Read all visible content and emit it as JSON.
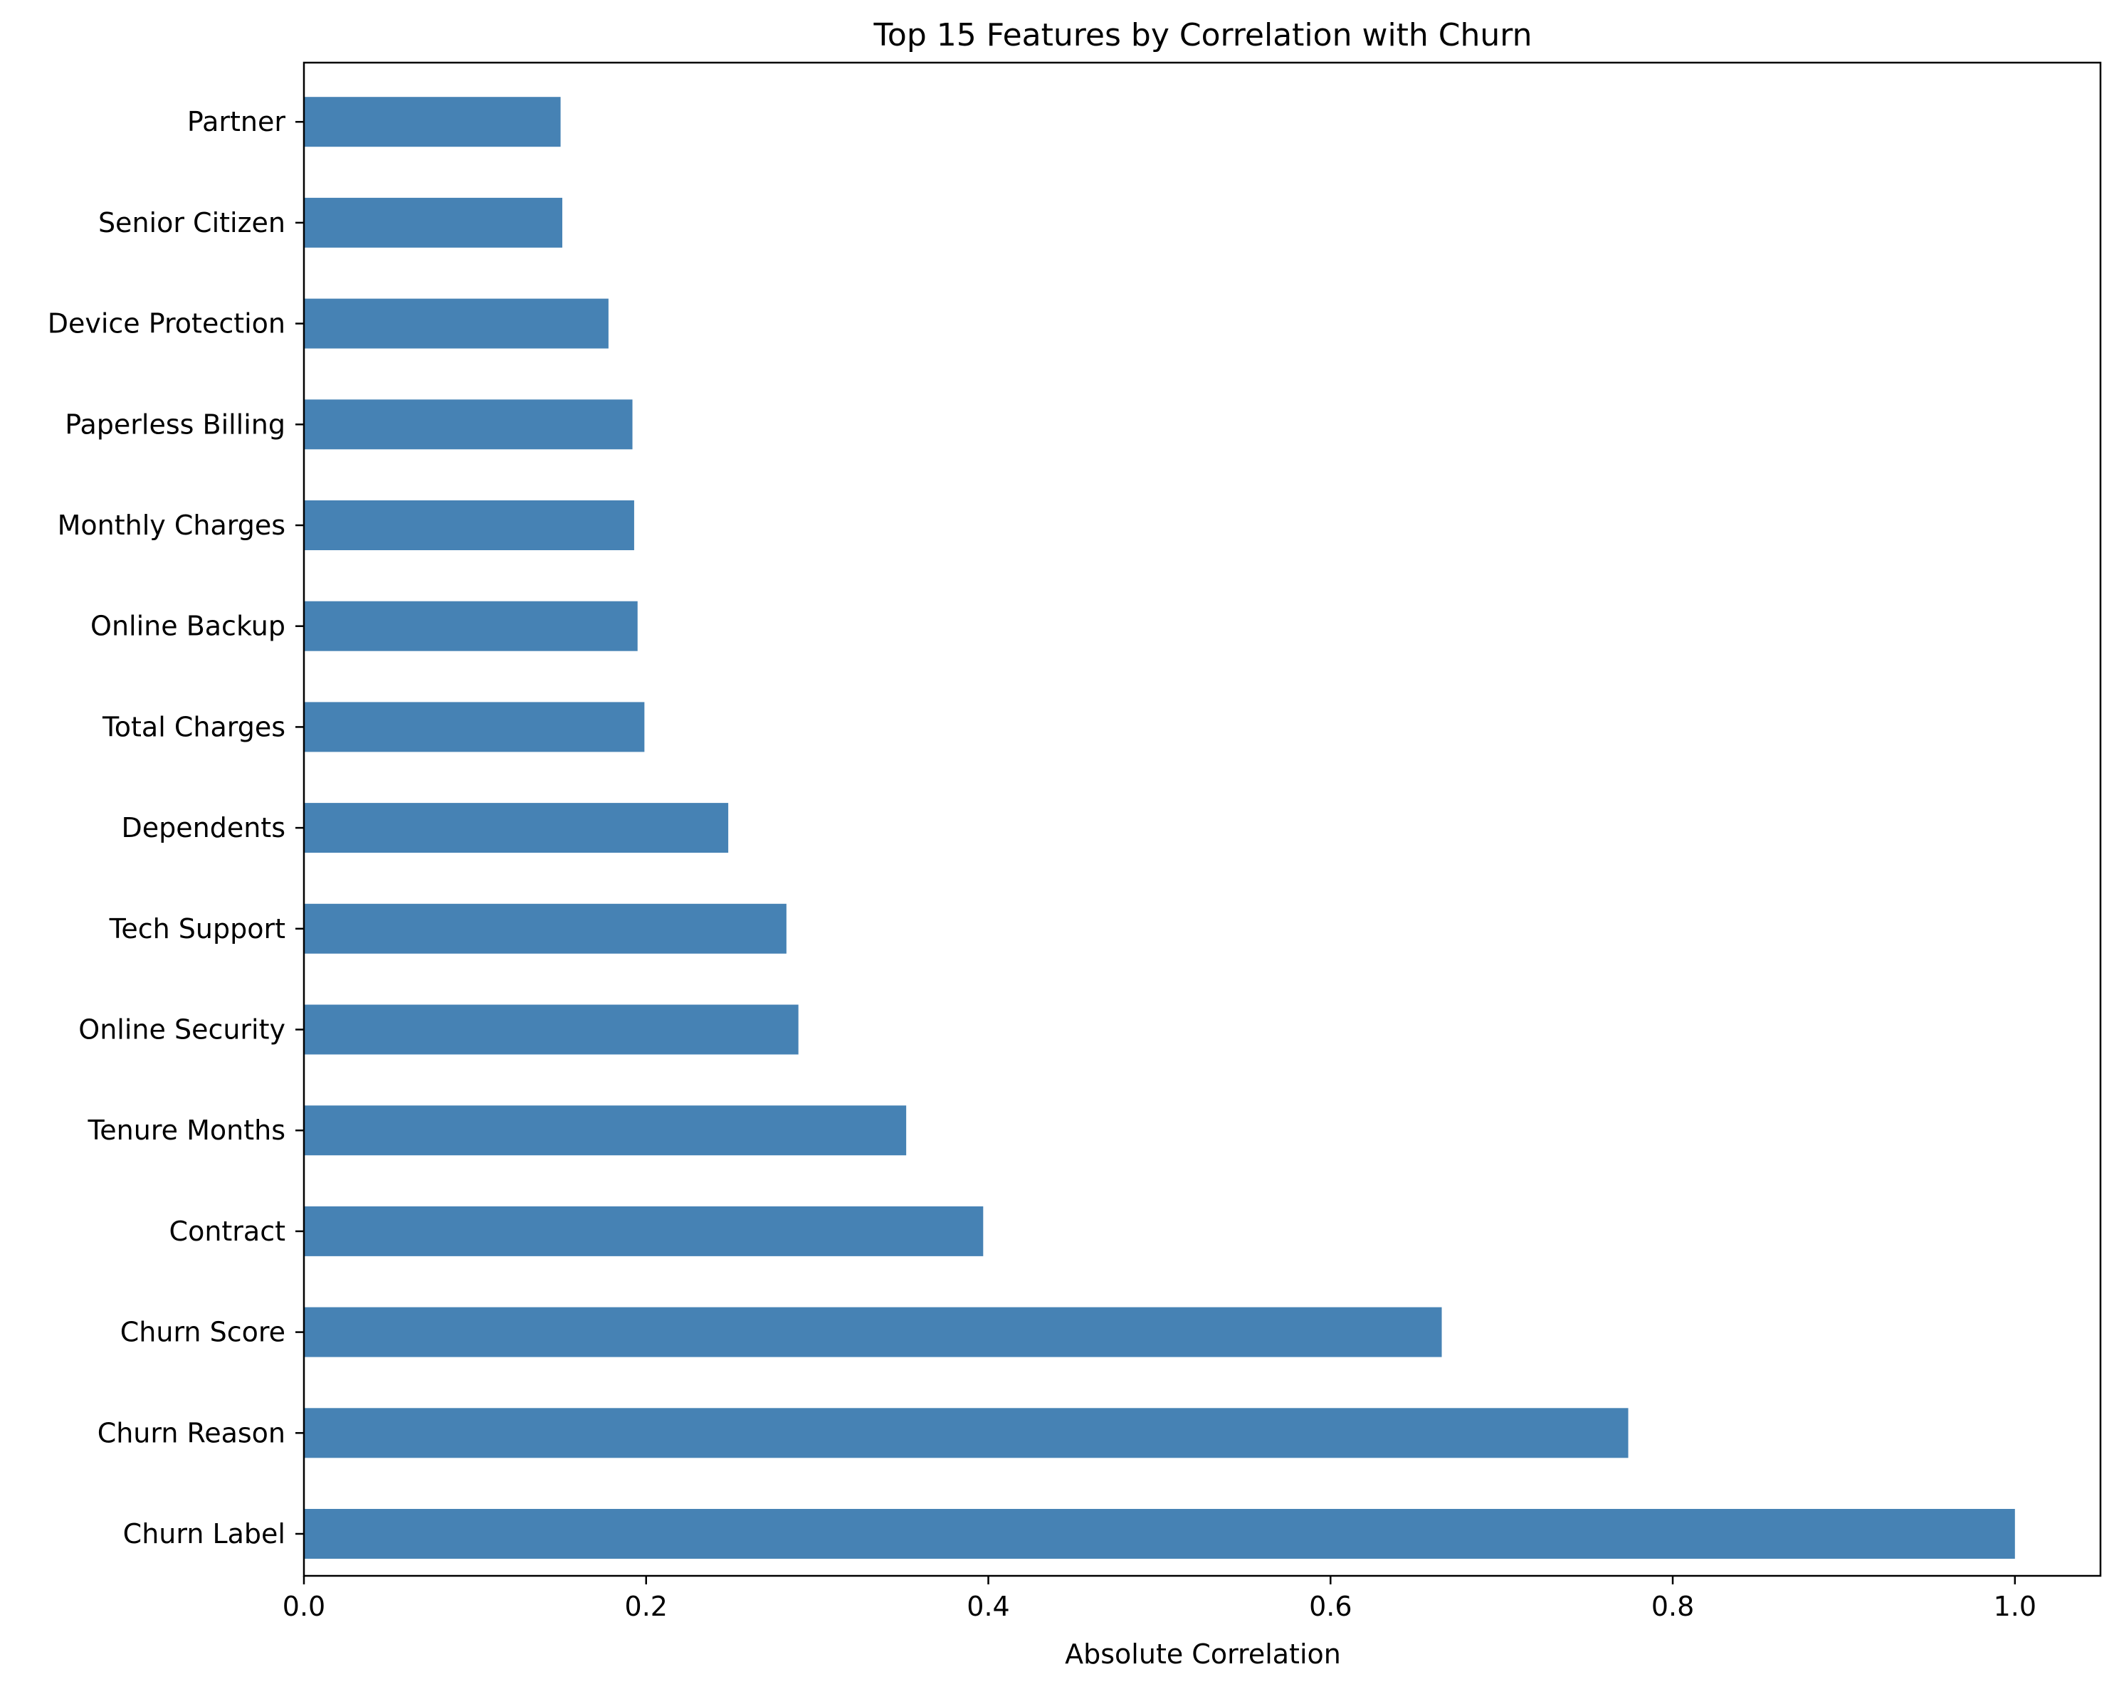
{
  "chart_data": {
    "type": "bar",
    "orientation": "horizontal",
    "title": "Top 15 Features by Correlation with Churn",
    "xlabel": "Absolute Correlation",
    "ylabel": "",
    "xlim": [
      0,
      1.05
    ],
    "x_ticks": [
      0.0,
      0.2,
      0.4,
      0.6,
      0.8,
      1.0
    ],
    "x_tick_labels": [
      "0.0",
      "0.2",
      "0.4",
      "0.6",
      "0.8",
      "1.0"
    ],
    "categories": [
      "Churn Label",
      "Churn Reason",
      "Churn Score",
      "Contract",
      "Tenure Months",
      "Online Security",
      "Tech Support",
      "Dependents",
      "Total Charges",
      "Online Backup",
      "Monthly Charges",
      "Paperless Billing",
      "Device Protection",
      "Senior Citizen",
      "Partner"
    ],
    "values": [
      1.0,
      0.774,
      0.665,
      0.397,
      0.352,
      0.289,
      0.282,
      0.248,
      0.199,
      0.195,
      0.193,
      0.192,
      0.178,
      0.151,
      0.15
    ],
    "bar_color": "#4682b4",
    "grid": false,
    "legend": "none"
  }
}
